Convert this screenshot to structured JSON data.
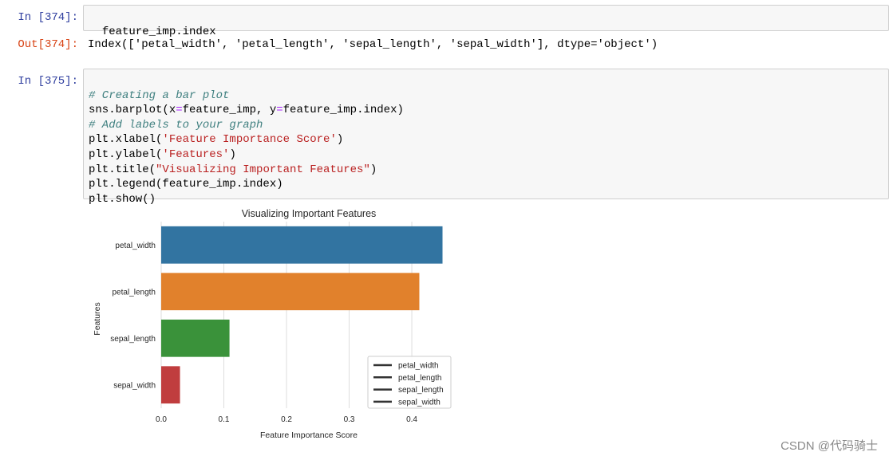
{
  "cells": [
    {
      "prompt": "In  [374]:",
      "code": "feature_imp.index"
    },
    {
      "out_prompt": "Out[374]:",
      "output": "Index(['petal_width', 'petal_length', 'sepal_length', 'sepal_width'], dtype='object')"
    },
    {
      "prompt": "In  [375]:",
      "lines": [
        {
          "comment": "# Creating a bar plot"
        },
        {
          "pre": "sns.barplot(x",
          "op1": "=",
          "mid": "feature_imp, y",
          "op2": "=",
          "post": "feature_imp.index)"
        },
        {
          "comment": "# Add labels to your graph"
        },
        {
          "pre": "plt.xlabel(",
          "str": "'Feature Importance Score'",
          "post": ")"
        },
        {
          "pre": "plt.ylabel(",
          "str": "'Features'",
          "post": ")"
        },
        {
          "pre": "plt.title(",
          "str": "\"Visualizing Important Features\"",
          "post": ")"
        },
        {
          "pre": "plt.legend(feature_imp.index)"
        },
        {
          "pre": "plt.show()"
        }
      ]
    }
  ],
  "chart_data": {
    "type": "bar",
    "orientation": "horizontal",
    "title": "Visualizing Important Features",
    "xlabel": "Feature Importance Score",
    "ylabel": "Features",
    "categories": [
      "petal_width",
      "petal_length",
      "sepal_length",
      "sepal_width"
    ],
    "values": [
      0.449,
      0.412,
      0.109,
      0.03
    ],
    "colors": [
      "#3274a1",
      "#e1812c",
      "#3a923a",
      "#c03d3e"
    ],
    "xticks": [
      "0.0",
      "0.1",
      "0.2",
      "0.3",
      "0.4"
    ],
    "xlim": [
      0,
      0.47
    ],
    "grid": "vertical",
    "legend": {
      "position": "lower-right",
      "entries": [
        "petal_width",
        "petal_length",
        "sepal_length",
        "sepal_width"
      ]
    }
  },
  "watermark": "CSDN @代码骑士"
}
